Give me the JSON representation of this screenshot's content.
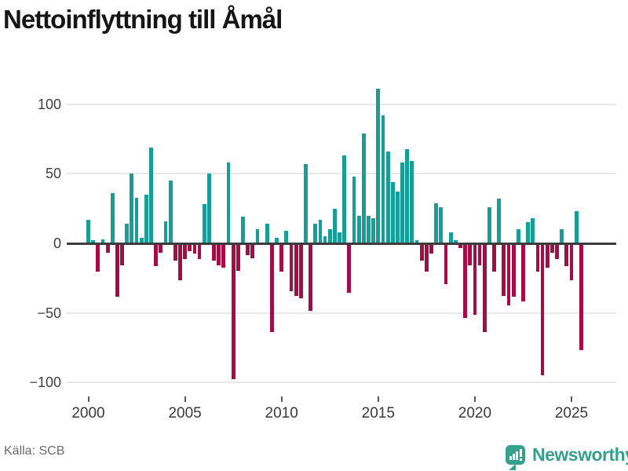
{
  "title": "Nettoinflyttning till Åmål",
  "source": "Källa: SCB",
  "branding": {
    "name": "Newsworthy",
    "logo_icon": "speech-bubble-bar-chart-icon"
  },
  "colors": {
    "positive_bar": "#169E98",
    "negative_bar": "#A30C45",
    "grid": "#e9e9e9",
    "zero_axis": "#3c3c3c",
    "axis_text": "#3a3a3a",
    "title_text": "#151515",
    "source_text": "#6b6b6b",
    "brand_teal": "#35A18D"
  },
  "chart_data": {
    "type": "bar",
    "title": "Nettoinflyttning till Åmål",
    "xlabel": "",
    "ylabel": "",
    "grid": true,
    "legend_position": "none",
    "frequency": "quarterly",
    "start_period": "2000-Q1",
    "end_period": "2025-Q3",
    "x_tick_labels": [
      "2000",
      "2005",
      "2010",
      "2015",
      "2020",
      "2025"
    ],
    "y_ticks": [
      100,
      50,
      0,
      -50,
      -100
    ],
    "ylim": [
      -110,
      120
    ],
    "series": [
      {
        "name": "Nettoinflyttning",
        "values": [
          17,
          2,
          -20,
          3,
          -6,
          36,
          -38,
          -15,
          14,
          50,
          33,
          4,
          35,
          69,
          -16,
          -6,
          16,
          45,
          -12,
          -26,
          -11,
          -5,
          -7,
          -11,
          28,
          50,
          -12,
          -15,
          -17,
          58,
          -97,
          -19,
          19,
          -8,
          -10,
          10,
          0,
          14,
          -63,
          4,
          -20,
          9,
          -34,
          -37,
          -39,
          57,
          -48,
          14,
          17,
          5,
          10,
          25,
          8,
          63,
          -35,
          48,
          20,
          79,
          20,
          18,
          111,
          92,
          66,
          44,
          37,
          58,
          68,
          59,
          2,
          -12,
          -20,
          -7,
          29,
          26,
          -29,
          8,
          2,
          -3,
          -53,
          -15,
          -51,
          -15,
          -63,
          26,
          -20,
          32,
          -37,
          -44,
          -38,
          10,
          -41,
          15,
          18,
          -20,
          -94,
          -17,
          -6,
          -11,
          10,
          -16,
          -26,
          23,
          -76
        ]
      }
    ]
  }
}
